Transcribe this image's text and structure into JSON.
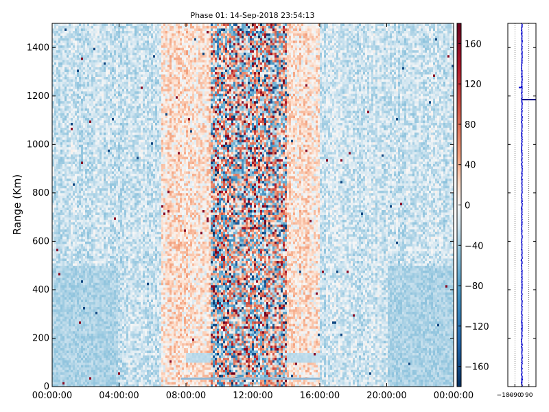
{
  "chart_data": [
    {
      "type": "heatmap",
      "title": "Phase 01: 14-Sep-2018 23:54:13",
      "xlabel": "",
      "ylabel": "Range (Km)",
      "x_ticks": [
        "00:00:00",
        "04:00:00",
        "08:00:00",
        "12:00:00",
        "16:00:00",
        "20:00:00",
        "00:00:00"
      ],
      "x_range_hours": [
        0,
        24
      ],
      "y_ticks": [
        0,
        200,
        400,
        600,
        800,
        1000,
        1200,
        1400
      ],
      "ylim": [
        0,
        1500
      ],
      "colormap": "RdBu_r",
      "colorbar": {
        "ticks": [
          160,
          120,
          80,
          40,
          0,
          -40,
          -80,
          -120,
          -160
        ],
        "tick_labels": [
          "160",
          "120",
          "80",
          "40",
          "0",
          "−40",
          "−80",
          "−120",
          "−160"
        ],
        "range": [
          -180,
          180
        ]
      },
      "features": {
        "noisy_band_hours": [
          9.5,
          14.0
        ],
        "warm_band_hours": [
          6.5,
          16.0
        ],
        "low_range_streak": {
          "hours": [
            8.0,
            16.0
          ],
          "range_km": [
            100,
            140
          ]
        },
        "bottom_streak": {
          "hours": [
            7.7,
            16.0
          ],
          "range_km": 33
        }
      },
      "grid": false,
      "colors": {
        "neg": "#2166ac",
        "pos": "#b2182b",
        "neutral": "#f7f7f7"
      }
    },
    {
      "type": "scatter",
      "title": "",
      "xlabel": "",
      "ylabel": "",
      "x_ticks": [
        "−180",
        "−90",
        "0",
        "90"
      ],
      "xlim": [
        -180,
        180
      ],
      "ylim": [
        0,
        1500
      ],
      "series": [
        {
          "values_desc": "phase profile near 0 with small scatter",
          "spike_range_km": 1185,
          "spike_extent": [
            0,
            180
          ],
          "left_blip_range_km": 1235,
          "left_blip_x": -40
        }
      ],
      "grid": "dotted vertical",
      "color": "#0000cc"
    }
  ]
}
